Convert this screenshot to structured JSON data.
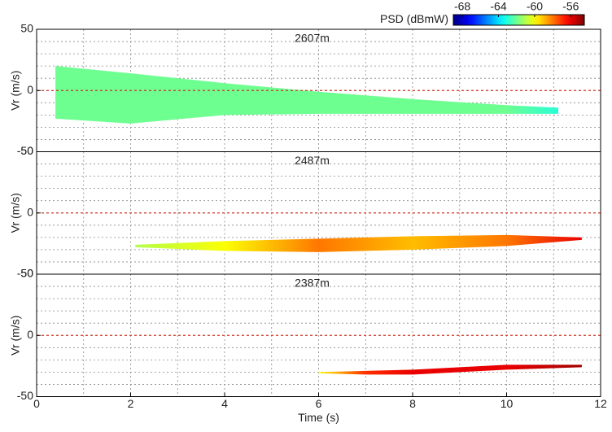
{
  "chart_data": [
    {
      "type": "band",
      "title": "2607m",
      "ylabel": "Vr (m/s)",
      "x": [
        0.4,
        2,
        4,
        6,
        8,
        10,
        11.1
      ],
      "upper": [
        20,
        14,
        6,
        -1,
        -7,
        -12,
        -14
      ],
      "lower": [
        -23,
        -27,
        -20,
        -19,
        -19,
        -19,
        -19
      ],
      "psd": [
        -62,
        -62,
        -62,
        -62,
        -62,
        -62,
        -63
      ],
      "xlim": [
        0,
        12
      ],
      "ylim": [
        -50,
        50
      ],
      "yticks": [
        -50,
        0,
        50
      ],
      "xgrid": [
        1,
        2,
        3,
        4,
        5,
        6,
        7,
        8,
        9,
        10,
        11
      ],
      "ygrid": [
        -40,
        -30,
        -20,
        -10,
        10,
        20,
        30,
        40
      ],
      "reference_line": 0,
      "colorbar": {
        "label": "PSD (dBmW)",
        "lim": [
          -69,
          -54.5
        ],
        "ticks": [
          -68,
          -64,
          -60,
          -56
        ]
      }
    },
    {
      "type": "band",
      "title": "2487m",
      "ylabel": "Vr (m/s)",
      "x": [
        2.1,
        4,
        6,
        8,
        10,
        11.6
      ],
      "upper": [
        -26,
        -23,
        -21,
        -19,
        -18,
        -20
      ],
      "lower": [
        -28,
        -31,
        -32,
        -30,
        -27,
        -22
      ],
      "psd": [
        -61,
        -60,
        -58,
        -59,
        -58,
        -56
      ],
      "xlim": [
        0,
        12
      ],
      "ylim": [
        -50,
        50
      ],
      "yticks": [
        -50,
        0,
        50
      ],
      "xgrid": [
        1,
        2,
        3,
        4,
        5,
        6,
        7,
        8,
        9,
        10,
        11
      ],
      "ygrid": [
        -40,
        -30,
        -20,
        -10,
        10,
        20,
        30,
        40
      ],
      "reference_line": 0
    },
    {
      "type": "band",
      "title": "2387m",
      "ylabel": "Vr (m/s)",
      "xlabel": "Time (s)",
      "x": [
        6,
        7,
        8,
        9,
        10,
        11.6
      ],
      "upper": [
        -30,
        -29,
        -28,
        -26,
        -24,
        -24
      ],
      "lower": [
        -31,
        -32,
        -32,
        -30,
        -28,
        -26
      ],
      "psd": [
        -60,
        -57,
        -56,
        -56,
        -56,
        -55
      ],
      "xlim": [
        0,
        12
      ],
      "ylim": [
        -50,
        50
      ],
      "yticks": [
        -50,
        0,
        50
      ],
      "xticks": [
        0,
        2,
        4,
        6,
        8,
        10,
        12
      ],
      "xgrid": [
        1,
        2,
        3,
        4,
        5,
        6,
        7,
        8,
        9,
        10,
        11
      ],
      "ygrid": [
        -40,
        -30,
        -20,
        -10,
        10,
        20,
        30,
        40
      ],
      "reference_line": 0
    }
  ]
}
